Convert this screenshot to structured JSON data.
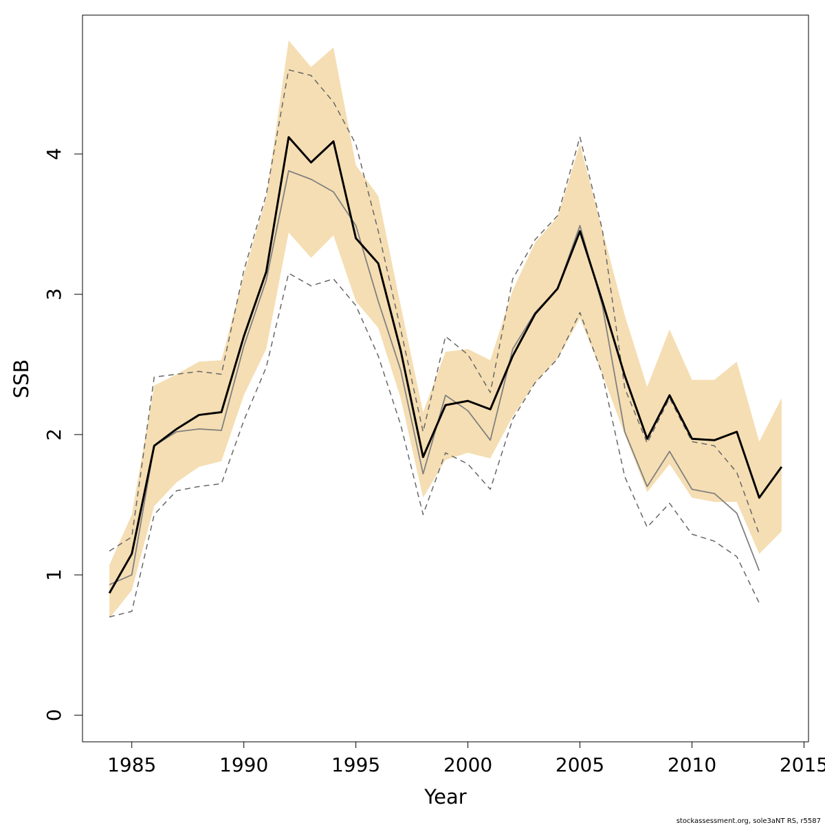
{
  "chart_data": {
    "type": "line",
    "x_label": "Year",
    "y_label": "SSB",
    "footer": "stockassessment.org, sole3aNT  RS, r5587",
    "x": [
      1984,
      1985,
      1986,
      1987,
      1988,
      1989,
      1990,
      1991,
      1992,
      1993,
      1994,
      1995,
      1996,
      1997,
      1998,
      1999,
      2000,
      2001,
      2002,
      2003,
      2004,
      2005,
      2006,
      2007,
      2008,
      2009,
      2010,
      2011,
      2012,
      2013,
      2014
    ],
    "band": {
      "color": "#f5deb3",
      "upper": [
        1.07,
        1.43,
        2.35,
        2.43,
        2.52,
        2.53,
        3.14,
        3.69,
        4.81,
        4.62,
        4.76,
        3.92,
        3.7,
        2.92,
        2.16,
        2.59,
        2.61,
        2.53,
        3.03,
        3.37,
        3.55,
        4.07,
        3.46,
        2.85,
        2.34,
        2.75,
        2.39,
        2.39,
        2.52,
        1.95,
        2.26
      ],
      "lower": [
        0.69,
        0.89,
        1.49,
        1.66,
        1.77,
        1.81,
        2.28,
        2.61,
        3.44,
        3.26,
        3.42,
        2.95,
        2.76,
        2.26,
        1.55,
        1.82,
        1.87,
        1.83,
        2.13,
        2.37,
        2.54,
        2.83,
        2.43,
        2.0,
        1.59,
        1.79,
        1.55,
        1.52,
        1.52,
        1.15,
        1.31
      ]
    },
    "series": [
      {
        "color": "#808080",
        "linewidth": 1.8,
        "dashed": false,
        "values": [
          0.93,
          1.0,
          1.92,
          2.02,
          2.04,
          2.03,
          2.63,
          3.1,
          3.88,
          3.82,
          3.73,
          3.49,
          2.95,
          2.46,
          1.72,
          2.28,
          2.17,
          1.96,
          2.61,
          2.87,
          3.04,
          3.49,
          2.92,
          2.02,
          1.63,
          1.88,
          1.61,
          1.58,
          1.44,
          1.03,
          null
        ]
      },
      {
        "color": "#666666",
        "linewidth": 1.5,
        "dashed": true,
        "values": [
          1.17,
          1.27,
          2.41,
          2.43,
          2.45,
          2.43,
          3.17,
          3.71,
          4.6,
          4.56,
          4.37,
          4.07,
          3.45,
          2.75,
          2.02,
          2.7,
          2.57,
          2.3,
          3.11,
          3.39,
          3.56,
          4.12,
          3.46,
          2.33,
          1.94,
          2.26,
          1.95,
          1.92,
          1.73,
          1.29,
          null
        ]
      },
      {
        "color": "#666666",
        "linewidth": 1.5,
        "dashed": true,
        "values": [
          0.7,
          0.74,
          1.43,
          1.6,
          1.63,
          1.65,
          2.1,
          2.48,
          3.15,
          3.06,
          3.11,
          2.92,
          2.56,
          2.07,
          1.43,
          1.87,
          1.79,
          1.61,
          2.11,
          2.37,
          2.54,
          2.87,
          2.43,
          1.7,
          1.34,
          1.51,
          1.29,
          1.24,
          1.13,
          0.8,
          null
        ]
      },
      {
        "color": "#000000",
        "linewidth": 3,
        "dashed": false,
        "values": [
          0.87,
          1.15,
          1.92,
          2.04,
          2.14,
          2.16,
          2.7,
          3.16,
          4.12,
          3.94,
          4.09,
          3.4,
          3.22,
          2.6,
          1.84,
          2.21,
          2.24,
          2.18,
          2.56,
          2.86,
          3.04,
          3.45,
          2.95,
          2.42,
          1.97,
          2.28,
          1.97,
          1.96,
          2.02,
          1.55,
          1.77
        ]
      }
    ],
    "xlim": [
      1982.8,
      2015.2
    ],
    "xticks": [
      1985,
      1990,
      1995,
      2000,
      2005,
      2010,
      2015
    ],
    "ylim": [
      -0.19,
      4.99
    ],
    "yticks": [
      0,
      1,
      2,
      3,
      4
    ]
  }
}
